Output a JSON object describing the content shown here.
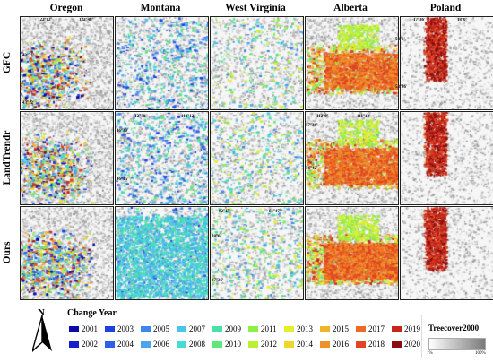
{
  "columns": [
    "Oregon",
    "Montana",
    "West Virginia",
    "Alberta",
    "Poland"
  ],
  "rows": [
    "GFC",
    "LandTrendr",
    "Ours"
  ],
  "coordinates": {
    "oregon_top_left": "122°12'",
    "oregon_top_right": "122°48'",
    "oregon_left_upper": "43°21'",
    "oregon_left_lower": "43°12'",
    "montana_top_left": "112°30'",
    "montana_top_right": "112°12'",
    "montana_left_upper": "46°30'",
    "montana_left_lower": "46°15'",
    "wv_top_left": "82°15'",
    "wv_top_right": "81°47'",
    "wv_left_upper": "38°0'",
    "wv_left_lower": "37°36'",
    "alberta_top_left": "112°0'",
    "alberta_top_right": "111°12'",
    "alberta_left_upper": "57°36'",
    "alberta_left_lower": "56°42'",
    "poland_top_left": "17°36'",
    "poland_top_right": "18°0'",
    "poland_left_upper": "54°0'",
    "poland_left_lower": "53°36'"
  },
  "north_label": "N",
  "legend": {
    "title": "Change Year",
    "items": [
      {
        "year": "2001",
        "color": "#0a0aa8"
      },
      {
        "year": "2002",
        "color": "#1420c8"
      },
      {
        "year": "2003",
        "color": "#1f3fe0"
      },
      {
        "year": "2004",
        "color": "#2f5ee8"
      },
      {
        "year": "2005",
        "color": "#3d86ec"
      },
      {
        "year": "2006",
        "color": "#4aa5ef"
      },
      {
        "year": "2007",
        "color": "#48c6ea"
      },
      {
        "year": "2008",
        "color": "#46dcd2"
      },
      {
        "year": "2009",
        "color": "#48e0a8"
      },
      {
        "year": "2010",
        "color": "#5ee87a"
      },
      {
        "year": "2011",
        "color": "#8cef46"
      },
      {
        "year": "2012",
        "color": "#b8f032"
      },
      {
        "year": "2013",
        "color": "#e4ee2a"
      },
      {
        "year": "2014",
        "color": "#eed62a"
      },
      {
        "year": "2015",
        "color": "#f0b42a"
      },
      {
        "year": "2016",
        "color": "#f0902a"
      },
      {
        "year": "2017",
        "color": "#ec6a26"
      },
      {
        "year": "2018",
        "color": "#e04420"
      },
      {
        "year": "2019",
        "color": "#c8241a"
      },
      {
        "year": "2020",
        "color": "#8a0e10"
      }
    ]
  },
  "treecover": {
    "title": "Treecover2000",
    "min_label": "1%",
    "max_label": "100%"
  }
}
